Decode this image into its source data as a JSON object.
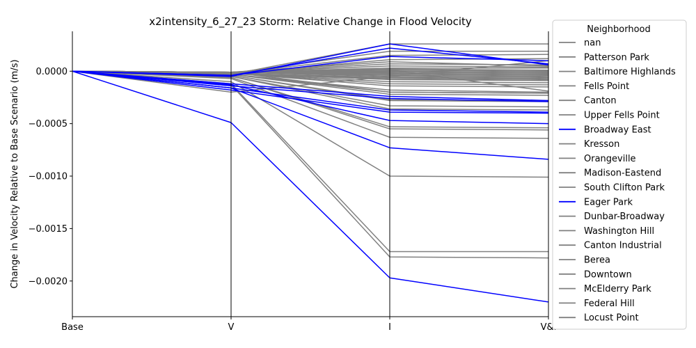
{
  "chart_data": {
    "type": "parallel_coordinates",
    "title": "x2intensity_6_27_23 Storm: Relative Change in Flood Velocity",
    "ylabel": "Change in Velocity Relative to Base Scenario (m/s)",
    "xlabel": "",
    "axes": [
      "Base",
      "V",
      "I",
      "V&I"
    ],
    "ylim": [
      -0.00234,
      0.00038
    ],
    "yticks": [
      0.0,
      -0.0005,
      -0.001,
      -0.0015,
      -0.002
    ],
    "ytick_labels": [
      "0.0000",
      "−0.0005",
      "−0.0010",
      "−0.0015",
      "−0.0020"
    ],
    "colors": {
      "highlight": "#0000ff",
      "other": "#808080"
    },
    "legend": {
      "title": "Neighborhood",
      "placement": "right-outside",
      "entries": [
        {
          "label": "nan",
          "color": "#808080"
        },
        {
          "label": "Patterson Park",
          "color": "#808080"
        },
        {
          "label": "Baltimore Highlands",
          "color": "#808080"
        },
        {
          "label": "Fells Point",
          "color": "#808080"
        },
        {
          "label": "Canton",
          "color": "#808080"
        },
        {
          "label": "Upper Fells Point",
          "color": "#808080"
        },
        {
          "label": "Broadway East",
          "color": "#0000ff"
        },
        {
          "label": "Kresson",
          "color": "#808080"
        },
        {
          "label": "Orangeville",
          "color": "#808080"
        },
        {
          "label": "Madison-Eastend",
          "color": "#808080"
        },
        {
          "label": "South Clifton Park",
          "color": "#808080"
        },
        {
          "label": "Eager Park",
          "color": "#0000ff"
        },
        {
          "label": "Dunbar-Broadway",
          "color": "#808080"
        },
        {
          "label": "Washington Hill",
          "color": "#808080"
        },
        {
          "label": "Canton Industrial",
          "color": "#808080"
        },
        {
          "label": "Berea",
          "color": "#808080"
        },
        {
          "label": "Downtown",
          "color": "#808080"
        },
        {
          "label": "McElderry Park",
          "color": "#808080"
        },
        {
          "label": "Federal Hill",
          "color": "#808080"
        },
        {
          "label": "Locust Point",
          "color": "#808080"
        }
      ]
    },
    "series_gray": [
      [
        0,
        -3e-05,
        0.00026,
        0.00026
      ],
      [
        0,
        -2e-05,
        0.00019,
        0.00019
      ],
      [
        0,
        -2e-05,
        0.00015,
        0.00016
      ],
      [
        0,
        -2e-05,
        0.00011,
        0.00012
      ],
      [
        0,
        -1e-05,
        9e-05,
        5e-05
      ],
      [
        0,
        -1e-05,
        7e-05,
        6e-05
      ],
      [
        0,
        -1e-05,
        5e-05,
        4e-05
      ],
      [
        0,
        -1e-05,
        3e-05,
        3e-05
      ],
      [
        0,
        -1e-05,
        2e-05,
        1e-05
      ],
      [
        0,
        -1e-05,
        1e-05,
        0.0
      ],
      [
        0,
        -1e-05,
        0.0,
        -1e-05
      ],
      [
        0,
        -1e-05,
        -1e-05,
        -2e-05
      ],
      [
        0,
        -1e-05,
        -2e-05,
        -3e-05
      ],
      [
        0,
        -1e-05,
        -3e-05,
        -4e-05
      ],
      [
        0,
        -1e-05,
        -4e-05,
        -5e-05
      ],
      [
        0,
        -1e-05,
        -5e-05,
        -6e-05
      ],
      [
        0,
        -2e-05,
        -6e-05,
        -7e-05
      ],
      [
        0,
        -2e-05,
        -7e-05,
        -8e-05
      ],
      [
        0,
        -2e-05,
        -8e-05,
        -9e-05
      ],
      [
        0,
        -2e-05,
        -0.0001,
        -0.00011
      ],
      [
        0,
        -2e-05,
        -0.00012,
        -0.00013
      ],
      [
        0,
        -2e-05,
        -0.00014,
        -0.00015
      ],
      [
        0,
        -3e-05,
        -0.00018,
        -0.0002
      ],
      [
        0,
        -3e-05,
        -0.0002,
        -0.00021
      ],
      [
        0,
        -3e-05,
        -0.00022,
        -0.00023
      ],
      [
        0,
        -4e-05,
        -0.00027,
        -0.00028
      ],
      [
        0,
        -4e-05,
        -0.00028,
        -0.00029
      ],
      [
        0,
        -5e-05,
        -0.00033,
        -0.00034
      ],
      [
        0,
        -5e-05,
        -0.00036,
        -0.00037
      ],
      [
        0,
        -6e-05,
        -0.00053,
        -0.00054
      ],
      [
        0,
        -6e-05,
        -0.00055,
        -0.00056
      ],
      [
        0,
        -7e-05,
        -0.00063,
        -0.00064
      ],
      [
        0,
        -0.0001,
        -0.001,
        -0.00101
      ],
      [
        0,
        -0.00012,
        -0.00172,
        -0.00172
      ],
      [
        0,
        -0.00013,
        -0.00177,
        -0.00178
      ],
      [
        0,
        -0.0002,
        -5e-05,
        0.0001
      ],
      [
        0,
        -2e-05,
        1e-05,
        -0.00019
      ],
      [
        0,
        -1e-05,
        -0.0002,
        -0.00021
      ]
    ],
    "series_blue": [
      [
        0,
        -5e-05,
        0.00026,
        6e-05
      ],
      [
        0,
        -4e-05,
        0.00022,
        7e-05
      ],
      [
        0,
        -4e-05,
        0.00014,
        0.0001
      ],
      [
        0,
        -0.00012,
        -0.00024,
        -0.00028
      ],
      [
        0,
        -0.00014,
        -0.00026,
        -0.00029
      ],
      [
        0,
        -0.00016,
        -0.00037,
        -0.00039
      ],
      [
        0,
        -0.00018,
        -0.00039,
        -0.0004
      ],
      [
        0,
        -0.00013,
        -0.00047,
        -0.0005
      ],
      [
        0,
        -0.00016,
        -0.00073,
        -0.00084
      ],
      [
        0,
        -0.00049,
        -0.00197,
        -0.0022
      ]
    ]
  }
}
